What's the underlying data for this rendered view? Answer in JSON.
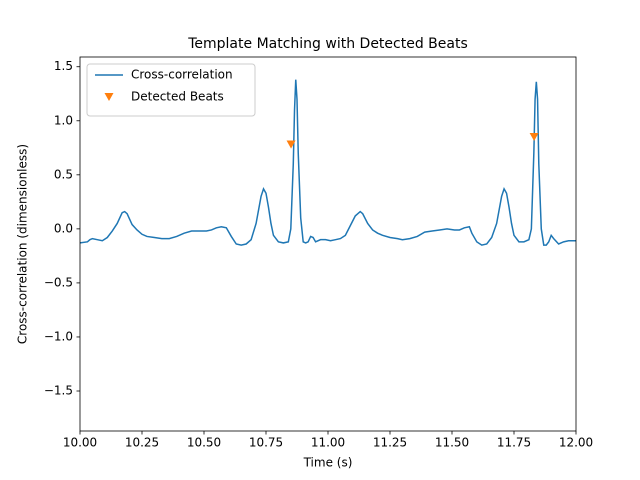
{
  "chart_data": {
    "type": "line",
    "title": "Template Matching with Detected Beats",
    "x_label": "Time (s)",
    "y_label": "Cross-correlation (dimensionless)",
    "xlim": [
      10.0,
      12.0
    ],
    "ylim": [
      -1.87,
      1.59
    ],
    "xticks": [
      {
        "value": 10.0,
        "label": "10.00"
      },
      {
        "value": 10.25,
        "label": "10.25"
      },
      {
        "value": 10.5,
        "label": "10.50"
      },
      {
        "value": 10.75,
        "label": "10.75"
      },
      {
        "value": 11.0,
        "label": "11.00"
      },
      {
        "value": 11.25,
        "label": "11.25"
      },
      {
        "value": 11.5,
        "label": "11.50"
      },
      {
        "value": 11.75,
        "label": "11.75"
      },
      {
        "value": 12.0,
        "label": "12.00"
      }
    ],
    "yticks": [
      {
        "value": -1.5,
        "label": "−1.5"
      },
      {
        "value": -1.0,
        "label": "−1.0"
      },
      {
        "value": -0.5,
        "label": "−0.5"
      },
      {
        "value": 0,
        "label": "0.0"
      },
      0.5,
      {
        "value": 1.0,
        "label": "1.0"
      },
      1.5
    ],
    "legend": "upper left",
    "grid": false,
    "series": [
      {
        "name": "Cross-correlation",
        "type": "line",
        "color": "#1f77b4",
        "x": [
          10.0,
          10.03,
          10.04,
          10.05,
          10.07,
          10.09,
          10.11,
          10.13,
          10.15,
          10.17,
          10.18,
          10.19,
          10.21,
          10.23,
          10.25,
          10.27,
          10.3,
          10.33,
          10.36,
          10.39,
          10.42,
          10.45,
          10.48,
          10.51,
          10.53,
          10.55,
          10.57,
          10.59,
          10.61,
          10.63,
          10.65,
          10.67,
          10.69,
          10.71,
          10.73,
          10.74,
          10.75,
          10.76,
          10.77,
          10.78,
          10.8,
          10.82,
          10.84,
          10.85,
          10.86,
          10.865,
          10.87,
          10.875,
          10.88,
          10.89,
          10.9,
          10.91,
          10.92,
          10.93,
          10.94,
          10.95,
          10.97,
          10.99,
          11.01,
          11.03,
          11.05,
          11.07,
          11.09,
          11.11,
          11.13,
          11.14,
          11.16,
          11.18,
          11.2,
          11.22,
          11.25,
          11.28,
          11.3,
          11.33,
          11.36,
          11.39,
          11.42,
          11.45,
          11.48,
          11.51,
          11.53,
          11.55,
          11.57,
          11.58,
          11.6,
          11.62,
          11.64,
          11.66,
          11.68,
          11.7,
          11.71,
          11.72,
          11.73,
          11.74,
          11.75,
          11.77,
          11.79,
          11.81,
          11.82,
          11.83,
          11.835,
          11.84,
          11.845,
          11.85,
          11.86,
          11.87,
          11.88,
          11.89,
          11.9,
          11.91,
          11.93,
          11.95,
          11.97,
          12.0
        ],
        "values": [
          -0.13,
          -0.12,
          -0.1,
          -0.09,
          -0.1,
          -0.11,
          -0.08,
          -0.02,
          0.05,
          0.15,
          0.16,
          0.14,
          0.04,
          -0.01,
          -0.05,
          -0.07,
          -0.08,
          -0.09,
          -0.09,
          -0.07,
          -0.04,
          -0.02,
          -0.02,
          -0.02,
          -0.01,
          0.01,
          0.02,
          0.01,
          -0.07,
          -0.14,
          -0.15,
          -0.14,
          -0.1,
          0.05,
          0.3,
          0.37,
          0.33,
          0.2,
          0.05,
          -0.06,
          -0.12,
          -0.13,
          -0.12,
          0.0,
          0.6,
          1.1,
          1.38,
          1.2,
          0.7,
          0.1,
          -0.12,
          -0.13,
          -0.12,
          -0.07,
          -0.08,
          -0.12,
          -0.1,
          -0.1,
          -0.11,
          -0.1,
          -0.09,
          -0.06,
          0.03,
          0.12,
          0.16,
          0.14,
          0.05,
          -0.01,
          -0.04,
          -0.06,
          -0.08,
          -0.09,
          -0.1,
          -0.09,
          -0.07,
          -0.03,
          -0.02,
          -0.01,
          0.0,
          -0.01,
          -0.01,
          0.01,
          0.02,
          -0.04,
          -0.12,
          -0.15,
          -0.14,
          -0.08,
          0.05,
          0.3,
          0.37,
          0.33,
          0.2,
          0.05,
          -0.06,
          -0.12,
          -0.12,
          -0.1,
          0.0,
          0.7,
          1.2,
          1.36,
          1.2,
          0.6,
          0.0,
          -0.15,
          -0.15,
          -0.12,
          -0.06,
          -0.09,
          -0.14,
          -0.12,
          -0.11,
          -0.11
        ]
      },
      {
        "name": "Detected Beats",
        "type": "scatter",
        "marker": "v",
        "color": "#ff7f0e",
        "x": [
          10.851,
          11.831
        ],
        "values": [
          0.78,
          0.85
        ]
      }
    ]
  }
}
